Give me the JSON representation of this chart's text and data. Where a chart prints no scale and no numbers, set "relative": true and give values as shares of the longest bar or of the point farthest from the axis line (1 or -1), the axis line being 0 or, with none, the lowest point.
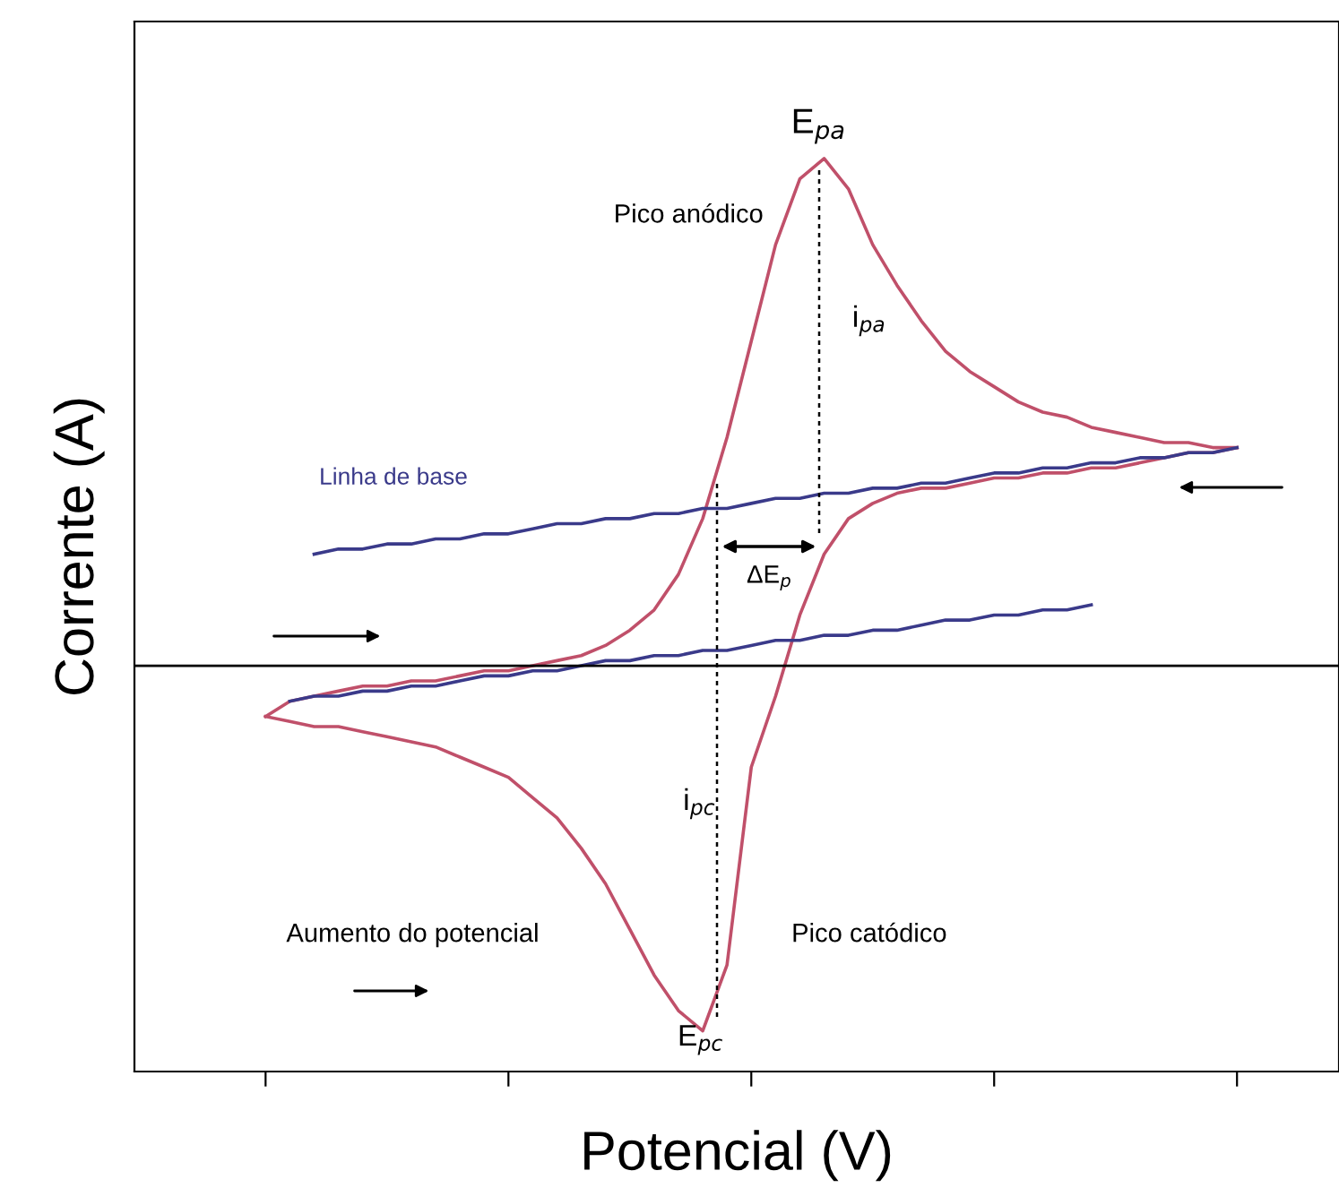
{
  "chart_data": {
    "type": "line",
    "relative": true,
    "xlabel": "Potencial (V)",
    "ylabel": "Corrente (A)",
    "grid": false,
    "tick_labels": false,
    "marker": "none",
    "line_style": "solid",
    "categories": [
      null,
      null,
      null,
      null,
      null,
      null,
      null,
      null,
      null,
      null,
      null,
      null,
      null,
      null,
      null,
      null,
      null,
      null,
      null,
      null,
      null,
      null,
      null,
      null,
      null,
      null,
      null,
      null,
      null,
      null,
      null,
      null,
      null,
      null,
      null,
      null,
      null,
      null,
      null,
      null,
      null
    ],
    "series": [
      {
        "color": "#c0506a",
        "values": [
          -0.1,
          -0.07,
          -0.06,
          -0.05,
          -0.04,
          -0.04,
          -0.03,
          -0.03,
          -0.02,
          -0.01,
          -0.01,
          0.0,
          0.01,
          0.02,
          0.04,
          0.07,
          0.11,
          0.18,
          0.29,
          0.45,
          0.64,
          0.83,
          0.96,
          1,
          0.94,
          0.83,
          0.75,
          0.68,
          0.62,
          0.58,
          0.55,
          0.52,
          0.5,
          0.49,
          0.47,
          0.46,
          0.45,
          0.44,
          0.44,
          0.43,
          0.43
        ]
      },
      {
        "color": "#c0506a",
        "values": [
          -0.1,
          -0.11,
          -0.12,
          -0.12,
          -0.13,
          -0.14,
          -0.15,
          -0.16,
          -0.18,
          -0.2,
          -0.22,
          -0.26,
          -0.3,
          -0.36,
          -0.43,
          -0.52,
          -0.61,
          -0.68,
          -0.72,
          -0.59,
          -0.2,
          -0.06,
          0.1,
          0.22,
          0.29,
          0.32,
          0.34,
          0.35,
          0.35,
          0.36,
          0.37,
          0.37,
          0.38,
          0.38,
          0.39,
          0.39,
          0.4,
          0.41,
          0.42,
          0.42,
          0.43
        ]
      },
      {
        "color": "#3a3a8a",
        "values": [
          null,
          null,
          0.22,
          0.23,
          0.23,
          0.24,
          0.24,
          0.25,
          0.25,
          0.26,
          0.26,
          0.27,
          0.28,
          0.28,
          0.29,
          0.29,
          0.3,
          0.3,
          0.31,
          0.31,
          0.32,
          0.33,
          0.33,
          0.34,
          0.34,
          0.35,
          0.35,
          0.36,
          0.36,
          0.37,
          0.38,
          0.38,
          0.39,
          0.39,
          0.4,
          0.4,
          0.41,
          0.41,
          0.42,
          0.42,
          0.43
        ]
      },
      {
        "color": "#3a3a8a",
        "values": [
          null,
          -0.07,
          -0.06,
          -0.06,
          -0.05,
          -0.05,
          -0.04,
          -0.04,
          -0.03,
          -0.02,
          -0.02,
          -0.01,
          -0.01,
          0.0,
          0.01,
          0.01,
          0.02,
          0.02,
          0.03,
          0.03,
          0.04,
          0.05,
          0.05,
          0.06,
          0.06,
          0.07,
          0.07,
          0.08,
          0.09,
          0.09,
          0.1,
          0.1,
          0.11,
          0.11,
          0.12,
          null,
          null,
          null,
          null,
          null,
          null
        ]
      }
    ],
    "annotations": [
      "E$_{pa}$",
      "Pico anódico",
      "i$_{pa}$",
      "Linha de base",
      "ΔE$_{p}$",
      "i$_{pc}$",
      "Pico catódico",
      "Aumento do potencial",
      "E$_{pc}$"
    ]
  }
}
